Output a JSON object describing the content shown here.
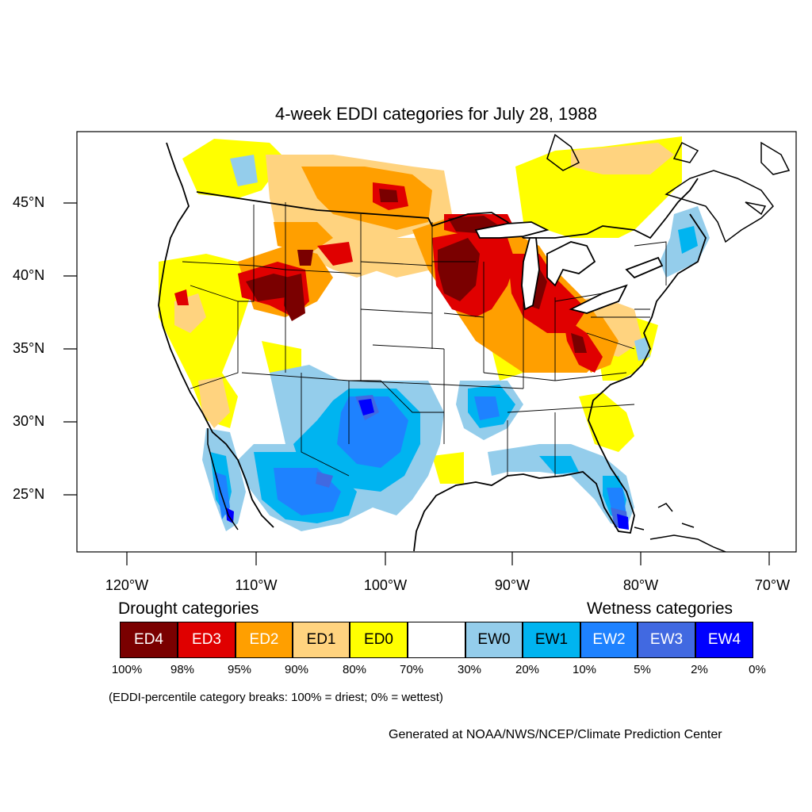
{
  "title": "4-week EDDI categories for July 28, 1988",
  "lat_labels": [
    "45°N",
    "40°N",
    "35°N",
    "30°N",
    "25°N"
  ],
  "lon_labels": [
    "120°W",
    "110°W",
    "100°W",
    "90°W",
    "80°W",
    "70°W"
  ],
  "legend": {
    "drought_heading": "Drought categories",
    "wetness_heading": "Wetness categories",
    "categories": [
      {
        "label": "ED4",
        "color": "#7a0000"
      },
      {
        "label": "ED3",
        "color": "#e00000"
      },
      {
        "label": "ED2",
        "color": "#ff9f00"
      },
      {
        "label": "ED1",
        "color": "#ffd37f"
      },
      {
        "label": "ED0",
        "color": "#ffff00"
      },
      {
        "label": "",
        "color": "#ffffff"
      },
      {
        "label": "EW0",
        "color": "#94cdeb"
      },
      {
        "label": "EW1",
        "color": "#00b4f0"
      },
      {
        "label": "EW2",
        "color": "#1e82ff"
      },
      {
        "label": "EW3",
        "color": "#4169e1"
      },
      {
        "label": "EW4",
        "color": "#0000ff"
      }
    ],
    "breaks": [
      "100%",
      "98%",
      "95%",
      "90%",
      "80%",
      "70%",
      "30%",
      "20%",
      "10%",
      "5%",
      "2%",
      "0%"
    ]
  },
  "note": "(EDDI-percentile category breaks: 100% = driest; 0% = wettest)",
  "credit": "Generated at NOAA/NWS/NCEP/Climate Prediction Center"
}
